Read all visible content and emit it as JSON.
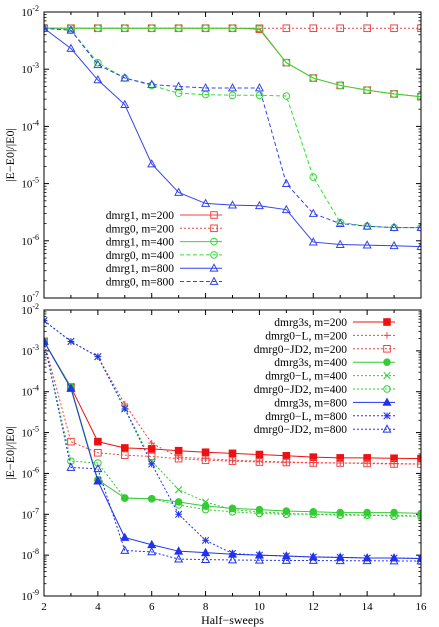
{
  "chart_data": [
    {
      "type": "line",
      "ylabel": "|E−E0|/|E0|",
      "xlabel": "",
      "xlim": [
        2,
        16
      ],
      "ylim": [
        1e-07,
        0.01
      ],
      "yscale": "log",
      "legend_position": "bottom-left",
      "y_ticks": [
        {
          "value": 1e-07,
          "base": "10",
          "exp": "-7"
        },
        {
          "value": 1e-06,
          "base": "10",
          "exp": "-6"
        },
        {
          "value": 1e-05,
          "base": "10",
          "exp": "-5"
        },
        {
          "value": 0.0001,
          "base": "10",
          "exp": "-4"
        },
        {
          "value": 0.001,
          "base": "10",
          "exp": "-3"
        },
        {
          "value": 0.01,
          "base": "10",
          "exp": "-2"
        }
      ],
      "x_ticks": [],
      "series": [
        {
          "name": "dmrg1, m=200",
          "color": "#ee4444",
          "dash": "solid",
          "marker": "square-open",
          "x": [
            2,
            3,
            4,
            5,
            6,
            7,
            8,
            9,
            10,
            11,
            12,
            13,
            14,
            15,
            16
          ],
          "y": [
            0.0052,
            0.0052,
            0.0052,
            0.0052,
            0.0052,
            0.0052,
            0.0052,
            0.0052,
            0.005,
            0.0013,
            0.0007,
            0.00052,
            0.00043,
            0.00037,
            0.00033
          ]
        },
        {
          "name": "dmrg0, m=200",
          "color": "#ee4444",
          "dash": "dotted",
          "marker": "square-open",
          "x": [
            2,
            3,
            4,
            5,
            6,
            7,
            8,
            9,
            10,
            11,
            12,
            13,
            14,
            15,
            16
          ],
          "y": [
            0.0052,
            0.0052,
            0.0052,
            0.0052,
            0.0052,
            0.0052,
            0.0052,
            0.0052,
            0.0052,
            0.0052,
            0.0052,
            0.0052,
            0.0052,
            0.0052,
            0.0052
          ]
        },
        {
          "name": "dmrg1, m=400",
          "color": "#33dd33",
          "dash": "solid",
          "marker": "circle-open",
          "x": [
            2,
            3,
            4,
            5,
            6,
            7,
            8,
            9,
            10,
            11,
            12,
            13,
            14,
            15,
            16
          ],
          "y": [
            0.0052,
            0.0052,
            0.0052,
            0.0052,
            0.0052,
            0.0052,
            0.0052,
            0.0052,
            0.0052,
            0.0013,
            0.0007,
            0.00052,
            0.00043,
            0.00037,
            0.00033
          ]
        },
        {
          "name": "dmrg0, m=400",
          "color": "#33dd33",
          "dash": "dashed",
          "marker": "circle-open",
          "x": [
            2,
            3,
            4,
            5,
            6,
            7,
            8,
            9,
            10,
            11,
            12,
            13,
            14,
            15,
            16
          ],
          "y": [
            0.0052,
            0.0048,
            0.0013,
            0.0007,
            0.00052,
            0.00038,
            0.00036,
            0.00035,
            0.00035,
            0.00034,
            1.3e-05,
            2.1e-06,
            1.8e-06,
            1.7e-06,
            1.7e-06
          ]
        },
        {
          "name": "dmrg1, m=800",
          "color": "#3344ee",
          "dash": "solid",
          "marker": "triangle-open",
          "x": [
            2,
            3,
            4,
            5,
            6,
            7,
            8,
            9,
            10,
            11,
            12,
            13,
            14,
            15,
            16
          ],
          "y": [
            0.0052,
            0.0023,
            0.00065,
            0.00024,
            2.2e-05,
            7e-06,
            4.5e-06,
            4.2e-06,
            4.1e-06,
            3.5e-06,
            9.5e-07,
            8.6e-07,
            8.4e-07,
            8.2e-07,
            7.9e-07
          ]
        },
        {
          "name": "dmrg0, m=800",
          "color": "#3344ee",
          "dash": "dashed",
          "marker": "triangle-open",
          "x": [
            2,
            3,
            4,
            5,
            6,
            7,
            8,
            9,
            10,
            11,
            12,
            13,
            14,
            15,
            16
          ],
          "y": [
            0.0052,
            0.0048,
            0.0012,
            0.0007,
            0.00054,
            0.0005,
            0.00047,
            0.00047,
            0.00047,
            1e-05,
            3e-06,
            2e-06,
            1.8e-06,
            1.7e-06,
            1.7e-06
          ]
        }
      ]
    },
    {
      "type": "line",
      "ylabel": "|E−E0|/|E0|",
      "xlabel": "Half−sweeps",
      "xlim": [
        2,
        16
      ],
      "ylim": [
        1e-09,
        0.01
      ],
      "yscale": "log",
      "legend_position": "top-right",
      "y_ticks": [
        {
          "value": 1e-09,
          "base": "10",
          "exp": "-9"
        },
        {
          "value": 1e-08,
          "base": "10",
          "exp": "-8"
        },
        {
          "value": 1e-07,
          "base": "10",
          "exp": "-7"
        },
        {
          "value": 1e-06,
          "base": "10",
          "exp": "-6"
        },
        {
          "value": 1e-05,
          "base": "10",
          "exp": "-5"
        },
        {
          "value": 0.0001,
          "base": "10",
          "exp": "-4"
        },
        {
          "value": 0.001,
          "base": "10",
          "exp": "-3"
        },
        {
          "value": 0.01,
          "base": "10",
          "exp": "-2"
        }
      ],
      "x_ticks": [
        "2",
        "4",
        "6",
        "8",
        "10",
        "12",
        "14",
        "16"
      ],
      "series": [
        {
          "name": "dmrg3s, m=200",
          "color": "#ee1111",
          "dash": "solid",
          "marker": "square-filled",
          "x": [
            2,
            3,
            4,
            5,
            6,
            7,
            8,
            9,
            10,
            11,
            12,
            13,
            14,
            15,
            16
          ],
          "y": [
            0.0017,
            0.00013,
            6e-06,
            4.2e-06,
            4e-06,
            3.6e-06,
            3.3e-06,
            3.1e-06,
            2.9e-06,
            2.7e-06,
            2.5e-06,
            2.4e-06,
            2.4e-06,
            2.35e-06,
            2.3e-06
          ]
        },
        {
          "name": "dmrg0−L, m=200",
          "color": "#ee4444",
          "dash": "dotted",
          "marker": "plus",
          "x": [
            2,
            3,
            4,
            5,
            6,
            7,
            8,
            9,
            10,
            11,
            12,
            13,
            14,
            15,
            16
          ],
          "y": [
            0.0055,
            0.0017,
            0.00072,
            5e-05,
            5.5e-06,
            2.5e-06,
            2.3e-06,
            2.1e-06,
            2e-06,
            1.9e-06,
            1.85e-06,
            1.8e-06,
            1.8e-06,
            1.75e-06,
            1.7e-06
          ]
        },
        {
          "name": "dmrg0−JD2, m=200",
          "color": "#ee4444",
          "dash": "dotted",
          "marker": "square-open",
          "x": [
            2,
            3,
            4,
            5,
            6,
            7,
            8,
            9,
            10,
            11,
            12,
            13,
            14,
            15,
            16
          ],
          "y": [
            0.0017,
            6e-06,
            3.2e-06,
            2.8e-06,
            2.6e-06,
            2.3e-06,
            2.1e-06,
            2e-06,
            1.9e-06,
            1.85e-06,
            1.8e-06,
            1.8e-06,
            1.75e-06,
            1.7e-06,
            1.7e-06
          ]
        },
        {
          "name": "dmrg3s, m=400",
          "color": "#33cc33",
          "dash": "solid",
          "marker": "circle-filled",
          "x": [
            2,
            3,
            4,
            5,
            6,
            7,
            8,
            9,
            10,
            11,
            12,
            13,
            14,
            15,
            16
          ],
          "y": [
            0.0017,
            0.00013,
            7e-07,
            2.5e-07,
            2.4e-07,
            2e-07,
            1.6e-07,
            1.4e-07,
            1.3e-07,
            1.2e-07,
            1.15e-07,
            1.1e-07,
            1.1e-07,
            1.1e-07,
            1.05e-07
          ]
        },
        {
          "name": "dmrg0−L, m=400",
          "color": "#33cc33",
          "dash": "dotted",
          "marker": "cross",
          "x": [
            2,
            3,
            4,
            5,
            6,
            7,
            8,
            9,
            10,
            11,
            12,
            13,
            14,
            15,
            16
          ],
          "y": [
            0.0055,
            0.0017,
            0.00072,
            4e-05,
            2e-06,
            4e-07,
            2e-07,
            1.3e-07,
            1.15e-07,
            1.05e-07,
            1e-07,
            1e-07,
            9.5e-08,
            9.5e-08,
            9e-08
          ]
        },
        {
          "name": "dmrg0−JD2, m=400",
          "color": "#33cc33",
          "dash": "dotted",
          "marker": "circle-open",
          "x": [
            2,
            3,
            4,
            5,
            6,
            7,
            8,
            9,
            10,
            11,
            12,
            13,
            14,
            15,
            16
          ],
          "y": [
            0.0017,
            2e-06,
            1.8e-06,
            2.5e-07,
            2.4e-07,
            1.7e-07,
            1.3e-07,
            1.15e-07,
            1.05e-07,
            1e-07,
            1e-07,
            9.5e-08,
            9.5e-08,
            9e-08,
            9e-08
          ]
        },
        {
          "name": "dmrg3s, m=800",
          "color": "#2233ee",
          "dash": "solid",
          "marker": "triangle-filled",
          "x": [
            2,
            3,
            4,
            5,
            6,
            7,
            8,
            9,
            10,
            11,
            12,
            13,
            14,
            15,
            16
          ],
          "y": [
            0.0017,
            0.00012,
            6.5e-07,
            2.7e-08,
            1.8e-08,
            1.25e-08,
            1.15e-08,
            1.05e-08,
            1e-08,
            9.5e-09,
            9e-09,
            8.8e-09,
            8.5e-09,
            8.5e-09,
            8.3e-09
          ]
        },
        {
          "name": "dmrg0−L, m=800",
          "color": "#2233ee",
          "dash": "dotted",
          "marker": "asterisk",
          "x": [
            2,
            3,
            4,
            5,
            6,
            7,
            8,
            9,
            10,
            11,
            12,
            13,
            14,
            15,
            16
          ],
          "y": [
            0.0055,
            0.0017,
            0.00072,
            3.8e-05,
            1.7e-06,
            1e-07,
            2.3e-08,
            1.1e-08,
            1e-08,
            9.5e-09,
            9e-09,
            8.8e-09,
            8.5e-09,
            8.5e-09,
            8.3e-09
          ]
        },
        {
          "name": "dmrg0−JD2, m=800",
          "color": "#2233ee",
          "dash": "dotted",
          "marker": "triangle-open",
          "x": [
            2,
            3,
            4,
            5,
            6,
            7,
            8,
            9,
            10,
            11,
            12,
            13,
            14,
            15,
            16
          ],
          "y": [
            0.0017,
            1.4e-06,
            1.3e-06,
            1.3e-08,
            1.2e-08,
            8e-09,
            7.8e-09,
            7.6e-09,
            7.5e-09,
            7.4e-09,
            7.4e-09,
            7.3e-09,
            7.3e-09,
            7.2e-09,
            7.2e-09
          ]
        }
      ]
    }
  ]
}
